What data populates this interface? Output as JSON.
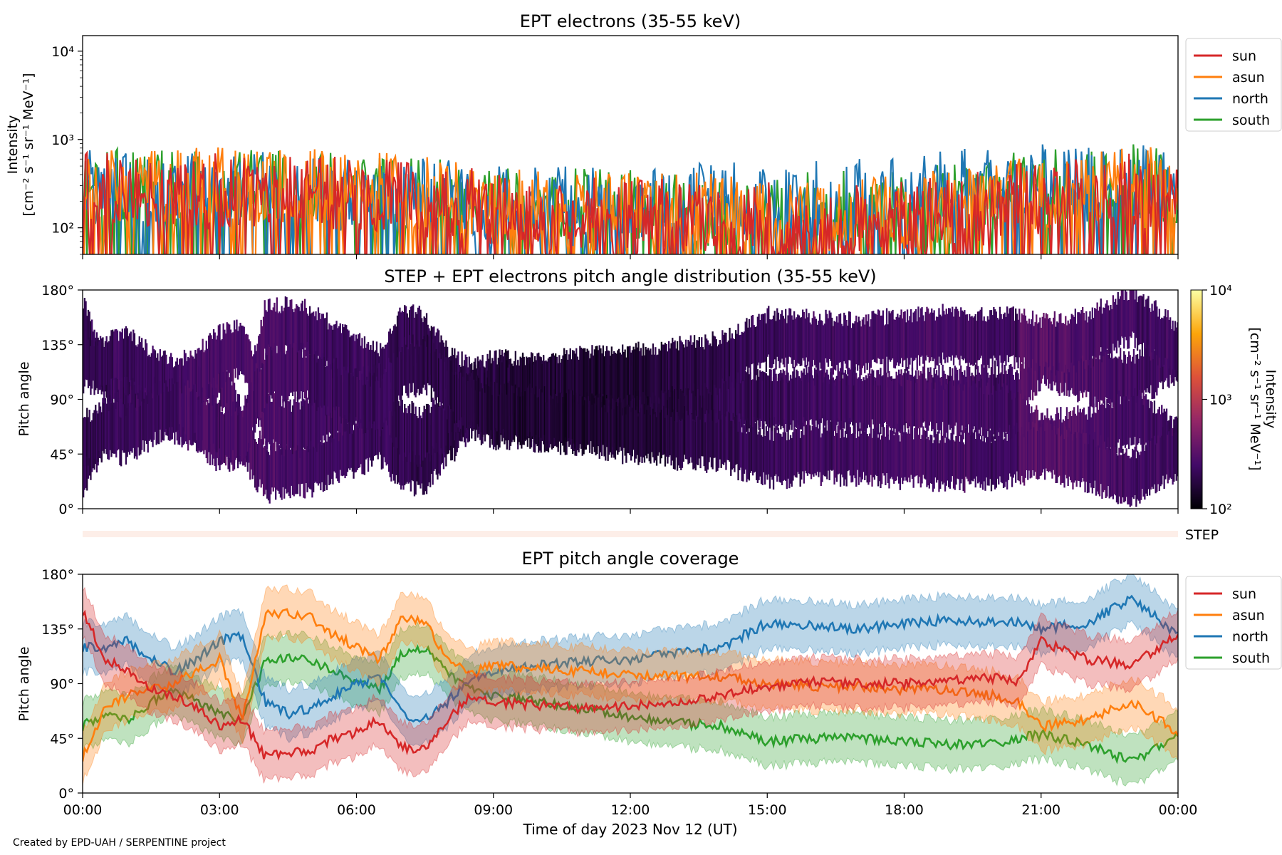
{
  "figure": {
    "credit": "Created by EPD-UAH / SERPENTINE project",
    "xlabel": "Time of day 2023 Nov 12 (UT)",
    "xticks": [
      "00:00",
      "03:00",
      "06:00",
      "09:00",
      "12:00",
      "15:00",
      "18:00",
      "21:00",
      "00:00"
    ],
    "step_label": "STEP"
  },
  "colors": {
    "sun": "#d62728",
    "asun": "#ff7f0e",
    "north": "#1f77b4",
    "south": "#2ca02c"
  },
  "chart_data": [
    {
      "type": "line",
      "title": "EPT electrons (35-55 keV)",
      "ylabel": [
        "Intensity",
        "[cm⁻² s⁻¹ sr⁻¹ MeV⁻¹]"
      ],
      "yscale": "log",
      "ylim": [
        50,
        15000
      ],
      "yticks": [
        "10⁴",
        "10³",
        "10²"
      ],
      "xlim_hours": [
        0,
        24
      ],
      "legend": {
        "placement": "outside-right-top",
        "entries": [
          "sun",
          "asun",
          "north",
          "south"
        ]
      },
      "series": [
        {
          "name": "sun",
          "x_hours": [
            0,
            1,
            2,
            3,
            4,
            5,
            6,
            7,
            8,
            9,
            10,
            11,
            12,
            13,
            14,
            15,
            16,
            17,
            18,
            19,
            20,
            21,
            22,
            23,
            24
          ],
          "values": [
            250,
            230,
            220,
            240,
            230,
            220,
            210,
            190,
            180,
            140,
            130,
            130,
            120,
            120,
            120,
            110,
            110,
            110,
            120,
            130,
            160,
            200,
            220,
            230,
            210
          ]
        },
        {
          "name": "asun",
          "x_hours": [
            0,
            1,
            2,
            3,
            4,
            5,
            6,
            7,
            8,
            9,
            10,
            11,
            12,
            13,
            14,
            15,
            16,
            17,
            18,
            19,
            20,
            21,
            22,
            23,
            24
          ],
          "values": [
            300,
            280,
            270,
            290,
            280,
            270,
            250,
            230,
            210,
            160,
            150,
            150,
            140,
            140,
            140,
            130,
            130,
            130,
            140,
            160,
            190,
            230,
            260,
            280,
            260
          ]
        },
        {
          "name": "north",
          "x_hours": [
            0,
            1,
            2,
            3,
            4,
            5,
            6,
            7,
            8,
            9,
            10,
            11,
            12,
            13,
            14,
            15,
            16,
            17,
            18,
            19,
            20,
            21,
            22,
            23,
            24
          ],
          "values": [
            260,
            240,
            230,
            250,
            240,
            230,
            220,
            210,
            200,
            170,
            170,
            180,
            180,
            190,
            190,
            180,
            190,
            200,
            220,
            260,
            330,
            300,
            280,
            290,
            270
          ]
        },
        {
          "name": "south",
          "x_hours": [
            0,
            1,
            2,
            3,
            4,
            5,
            6,
            7,
            8,
            9,
            10,
            11,
            12,
            13,
            14,
            15,
            16,
            17,
            18,
            19,
            20,
            21,
            22,
            23,
            24
          ],
          "values": [
            280,
            260,
            250,
            270,
            260,
            250,
            240,
            220,
            210,
            170,
            160,
            160,
            150,
            150,
            150,
            150,
            150,
            160,
            170,
            190,
            230,
            260,
            290,
            300,
            280
          ]
        }
      ]
    },
    {
      "type": "heatmap",
      "title": "STEP + EPT electrons pitch angle distribution (35-55 keV)",
      "ylabel": "Pitch angle",
      "ylim": [
        0,
        180
      ],
      "yticks": [
        "180°",
        "135°",
        "90°",
        "45°",
        "0°"
      ],
      "xlim_hours": [
        0,
        24
      ],
      "colorbar": {
        "label": [
          "Intensity",
          "[cm⁻² s⁻¹ sr⁻¹ MeV⁻¹]"
        ],
        "scale": "log",
        "range": [
          100,
          10000
        ],
        "ticks": [
          "10⁴",
          "10³",
          "10²"
        ],
        "colormap": "inferno"
      }
    },
    {
      "type": "line",
      "title": "EPT pitch angle coverage",
      "ylabel": "Pitch angle",
      "ylim": [
        0,
        180
      ],
      "yticks": [
        "180°",
        "135°",
        "90°",
        "45°",
        "0°"
      ],
      "xlim_hours": [
        0,
        24
      ],
      "legend": {
        "placement": "outside-right-top",
        "entries": [
          "sun",
          "asun",
          "north",
          "south"
        ]
      },
      "band_halfwidth_deg": 20,
      "series": [
        {
          "name": "sun",
          "x_hours": [
            0,
            0.5,
            1,
            1.5,
            2,
            2.5,
            3,
            3.5,
            4,
            4.5,
            5,
            5.5,
            6,
            6.5,
            7,
            7.5,
            8,
            8.5,
            9,
            10,
            11,
            12,
            13,
            14,
            15,
            16,
            17,
            18,
            19,
            20,
            20.5,
            21,
            22,
            23,
            24
          ],
          "values": [
            150,
            110,
            100,
            85,
            80,
            70,
            55,
            60,
            30,
            32,
            35,
            45,
            50,
            60,
            38,
            35,
            60,
            80,
            75,
            72,
            70,
            72,
            75,
            80,
            88,
            92,
            90,
            90,
            92,
            95,
            92,
            125,
            110,
            105,
            130
          ]
        },
        {
          "name": "asun",
          "x_hours": [
            0,
            0.5,
            1,
            1.5,
            2,
            2.5,
            3,
            3.5,
            4,
            4.5,
            5,
            5.5,
            6,
            6.5,
            7,
            7.5,
            8,
            8.5,
            9,
            10,
            11,
            12,
            13,
            14,
            15,
            16,
            17,
            18,
            19,
            20,
            20.5,
            21,
            22,
            23,
            24
          ],
          "values": [
            30,
            70,
            80,
            85,
            90,
            100,
            110,
            60,
            148,
            148,
            145,
            130,
            120,
            110,
            145,
            140,
            110,
            98,
            105,
            102,
            100,
            98,
            96,
            95,
            90,
            88,
            88,
            85,
            85,
            80,
            75,
            55,
            60,
            75,
            50
          ]
        },
        {
          "name": "north",
          "x_hours": [
            0,
            0.5,
            1,
            1.5,
            2,
            2.5,
            3,
            3.5,
            4,
            4.5,
            5,
            5.5,
            6,
            6.5,
            7,
            7.5,
            8,
            8.5,
            9,
            10,
            11,
            12,
            13,
            14,
            15,
            16,
            17,
            18,
            19,
            20,
            20.5,
            21,
            22,
            23,
            24
          ],
          "values": [
            120,
            120,
            125,
            110,
            100,
            110,
            125,
            130,
            75,
            65,
            70,
            80,
            90,
            95,
            65,
            60,
            75,
            95,
            100,
            105,
            108,
            110,
            115,
            120,
            140,
            138,
            135,
            140,
            142,
            140,
            140,
            135,
            140,
            160,
            130
          ]
        },
        {
          "name": "south",
          "x_hours": [
            0,
            0.5,
            1,
            1.5,
            2,
            2.5,
            3,
            3.5,
            4,
            4.5,
            5,
            5.5,
            6,
            6.5,
            7,
            7.5,
            8,
            8.5,
            9,
            10,
            11,
            12,
            13,
            14,
            15,
            16,
            17,
            18,
            19,
            20,
            20.5,
            21,
            22,
            23,
            24
          ],
          "values": [
            55,
            65,
            60,
            75,
            85,
            75,
            65,
            60,
            108,
            112,
            110,
            100,
            90,
            85,
            115,
            120,
            100,
            85,
            80,
            75,
            70,
            62,
            58,
            55,
            42,
            45,
            45,
            42,
            40,
            40,
            45,
            48,
            40,
            25,
            48
          ]
        }
      ]
    }
  ]
}
